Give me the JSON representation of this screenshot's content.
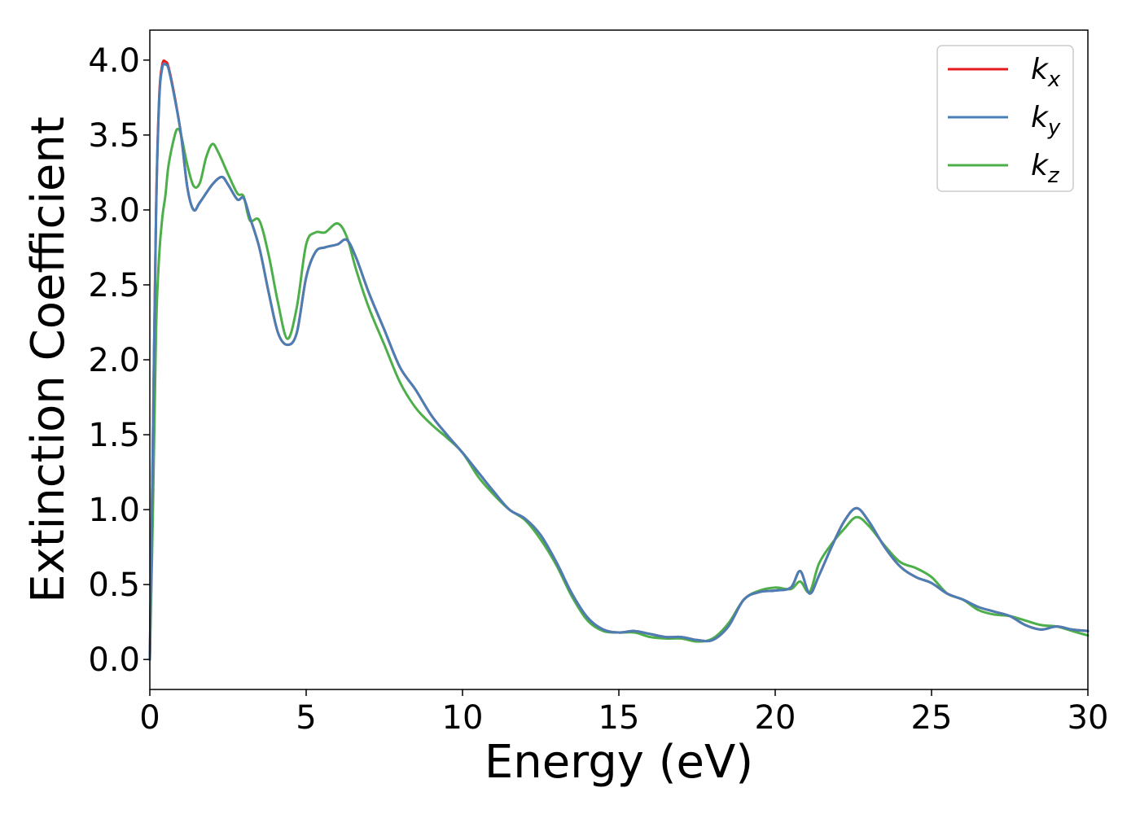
{
  "chart_data": {
    "type": "line",
    "title": "",
    "xlabel": "Energy (eV)",
    "ylabel": "Extinction Coefficient",
    "xlim": [
      0,
      30
    ],
    "ylim": [
      -0.2,
      4.2
    ],
    "xticks": [
      0,
      5,
      10,
      15,
      20,
      25,
      30
    ],
    "xtick_labels": [
      "0",
      "5",
      "10",
      "15",
      "20",
      "25",
      "30"
    ],
    "yticks": [
      0.0,
      0.5,
      1.0,
      1.5,
      2.0,
      2.5,
      3.0,
      3.5,
      4.0
    ],
    "ytick_labels": [
      "0.0",
      "0.5",
      "1.0",
      "1.5",
      "2.0",
      "2.5",
      "3.0",
      "3.5",
      "4.0"
    ],
    "grid": false,
    "legend_position": "top-right",
    "series": [
      {
        "name": "k",
        "subscript": "x",
        "color": "#e41a1c",
        "x": [
          0,
          0.1,
          0.2,
          0.3,
          0.4,
          0.5,
          0.6,
          0.8,
          1.0,
          1.2,
          1.4,
          1.6,
          2.0,
          2.3,
          2.5,
          2.8,
          3.0,
          3.2,
          3.5,
          3.8,
          4.1,
          4.4,
          4.7,
          5.0,
          5.3,
          5.6,
          6.0,
          6.3,
          6.6,
          7.0,
          7.5,
          8.0,
          8.5,
          9.0,
          9.5,
          10.0,
          10.5,
          11.0,
          11.5,
          12.0,
          12.5,
          13.0,
          13.5,
          14.0,
          14.5,
          15.0,
          15.5,
          16.0,
          16.5,
          17.0,
          17.5,
          18.0,
          18.5,
          19.0,
          19.5,
          20.0,
          20.5,
          20.8,
          21.1,
          21.4,
          21.8,
          22.2,
          22.6,
          23.0,
          23.5,
          24.0,
          24.5,
          25.0,
          25.5,
          26.0,
          26.5,
          27.0,
          27.5,
          28.0,
          28.5,
          29.0,
          29.5,
          30.0
        ],
        "y": [
          0.0,
          1.5,
          3.0,
          3.75,
          3.97,
          3.99,
          3.95,
          3.75,
          3.5,
          3.15,
          3.0,
          3.05,
          3.17,
          3.22,
          3.17,
          3.07,
          3.08,
          2.95,
          2.75,
          2.45,
          2.18,
          2.1,
          2.18,
          2.55,
          2.72,
          2.75,
          2.77,
          2.8,
          2.68,
          2.45,
          2.2,
          1.95,
          1.8,
          1.63,
          1.5,
          1.38,
          1.25,
          1.12,
          1.0,
          0.94,
          0.83,
          0.65,
          0.44,
          0.28,
          0.2,
          0.18,
          0.19,
          0.17,
          0.15,
          0.15,
          0.13,
          0.13,
          0.22,
          0.4,
          0.45,
          0.46,
          0.48,
          0.59,
          0.44,
          0.56,
          0.75,
          0.92,
          1.01,
          0.92,
          0.75,
          0.62,
          0.55,
          0.51,
          0.44,
          0.4,
          0.35,
          0.32,
          0.29,
          0.23,
          0.2,
          0.22,
          0.2,
          0.19
        ]
      },
      {
        "name": "k",
        "subscript": "y",
        "color": "#4a7fb5",
        "x": [
          0,
          0.1,
          0.2,
          0.3,
          0.4,
          0.5,
          0.6,
          0.8,
          1.0,
          1.2,
          1.4,
          1.6,
          2.0,
          2.3,
          2.5,
          2.8,
          3.0,
          3.2,
          3.5,
          3.8,
          4.1,
          4.4,
          4.7,
          5.0,
          5.3,
          5.6,
          6.0,
          6.3,
          6.6,
          7.0,
          7.5,
          8.0,
          8.5,
          9.0,
          9.5,
          10.0,
          10.5,
          11.0,
          11.5,
          12.0,
          12.5,
          13.0,
          13.5,
          14.0,
          14.5,
          15.0,
          15.5,
          16.0,
          16.5,
          17.0,
          17.5,
          18.0,
          18.5,
          19.0,
          19.5,
          20.0,
          20.5,
          20.8,
          21.1,
          21.4,
          21.8,
          22.2,
          22.6,
          23.0,
          23.5,
          24.0,
          24.5,
          25.0,
          25.5,
          26.0,
          26.5,
          27.0,
          27.5,
          28.0,
          28.5,
          29.0,
          29.5,
          30.0
        ],
        "y": [
          0.0,
          1.5,
          2.98,
          3.73,
          3.95,
          3.97,
          3.94,
          3.74,
          3.5,
          3.15,
          3.0,
          3.05,
          3.17,
          3.22,
          3.17,
          3.07,
          3.08,
          2.95,
          2.75,
          2.45,
          2.18,
          2.1,
          2.18,
          2.55,
          2.72,
          2.75,
          2.77,
          2.8,
          2.68,
          2.45,
          2.2,
          1.95,
          1.8,
          1.63,
          1.5,
          1.38,
          1.25,
          1.12,
          1.0,
          0.94,
          0.83,
          0.65,
          0.44,
          0.28,
          0.2,
          0.18,
          0.19,
          0.17,
          0.15,
          0.15,
          0.13,
          0.13,
          0.22,
          0.4,
          0.45,
          0.46,
          0.48,
          0.59,
          0.44,
          0.56,
          0.75,
          0.92,
          1.01,
          0.92,
          0.75,
          0.62,
          0.55,
          0.51,
          0.44,
          0.4,
          0.35,
          0.32,
          0.29,
          0.23,
          0.2,
          0.22,
          0.2,
          0.19
        ]
      },
      {
        "name": "k",
        "subscript": "z",
        "color": "#4daf4a",
        "x": [
          0,
          0.1,
          0.2,
          0.3,
          0.4,
          0.5,
          0.6,
          0.8,
          0.9,
          1.0,
          1.2,
          1.4,
          1.6,
          1.8,
          2.0,
          2.2,
          2.5,
          2.8,
          3.0,
          3.2,
          3.5,
          3.8,
          4.1,
          4.4,
          4.7,
          5.0,
          5.3,
          5.6,
          6.0,
          6.3,
          6.6,
          7.0,
          7.5,
          8.0,
          8.5,
          9.0,
          9.5,
          10.0,
          10.5,
          11.0,
          11.5,
          12.0,
          12.5,
          13.0,
          13.5,
          14.0,
          14.5,
          15.0,
          15.5,
          16.0,
          16.5,
          17.0,
          17.5,
          18.0,
          18.5,
          19.0,
          19.5,
          20.0,
          20.5,
          20.8,
          21.1,
          21.4,
          21.8,
          22.2,
          22.6,
          23.0,
          23.5,
          24.0,
          24.5,
          25.0,
          25.5,
          26.0,
          26.5,
          27.0,
          27.5,
          28.0,
          28.5,
          29.0,
          29.5,
          30.0
        ],
        "y": [
          0.0,
          1.0,
          2.2,
          2.7,
          2.95,
          3.1,
          3.3,
          3.5,
          3.54,
          3.5,
          3.3,
          3.16,
          3.18,
          3.35,
          3.44,
          3.38,
          3.24,
          3.11,
          3.09,
          2.93,
          2.93,
          2.7,
          2.38,
          2.14,
          2.35,
          2.77,
          2.85,
          2.85,
          2.91,
          2.82,
          2.6,
          2.35,
          2.1,
          1.85,
          1.68,
          1.57,
          1.48,
          1.38,
          1.22,
          1.1,
          1.0,
          0.93,
          0.8,
          0.63,
          0.42,
          0.26,
          0.19,
          0.18,
          0.18,
          0.15,
          0.14,
          0.14,
          0.12,
          0.14,
          0.24,
          0.4,
          0.46,
          0.48,
          0.47,
          0.52,
          0.45,
          0.64,
          0.77,
          0.87,
          0.95,
          0.89,
          0.76,
          0.65,
          0.61,
          0.55,
          0.44,
          0.4,
          0.33,
          0.3,
          0.29,
          0.26,
          0.23,
          0.22,
          0.19,
          0.16
        ]
      }
    ]
  }
}
